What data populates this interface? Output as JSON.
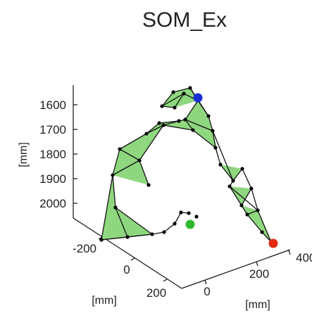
{
  "chart_data": {
    "type": "mesh3d",
    "title": "SOM_Ex",
    "z_axis": {
      "label": "[mm]",
      "ticks": [
        "1600",
        "1700",
        "1800",
        "1900",
        "2000"
      ],
      "reversed": true
    },
    "y_axis": {
      "label": "[mm]",
      "ticks": [
        "-200",
        "0",
        "200"
      ]
    },
    "x_axis": {
      "label": "[mm]",
      "ticks": [
        "0",
        "200",
        "400"
      ]
    },
    "mesh": {
      "face_color": "#8fd77f",
      "edge_color": "#111111",
      "node_color": "#000000"
    },
    "highlighted_nodes": [
      {
        "color": "#1a2fd8"
      },
      {
        "color": "#e62a12"
      },
      {
        "color": "#2fb82f"
      }
    ]
  }
}
